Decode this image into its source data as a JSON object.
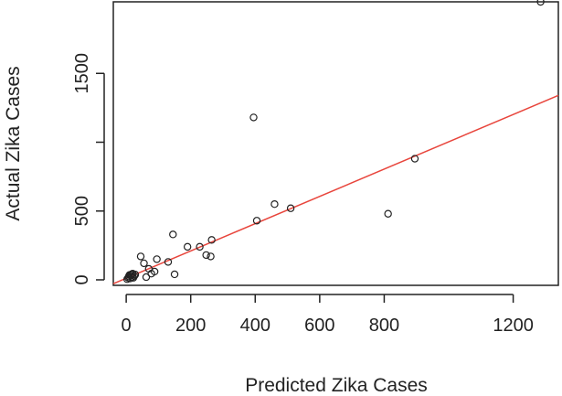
{
  "chart_data": {
    "type": "scatter",
    "title": "",
    "xlabel": "Predicted Zika Cases",
    "ylabel": "Actual Zika Cases",
    "xlim": [
      -40,
      1340
    ],
    "ylim": [
      -40,
      2020
    ],
    "x_ticks": [
      {
        "value": 0,
        "label": "0"
      },
      {
        "value": 200,
        "label": "200"
      },
      {
        "value": 400,
        "label": "400"
      },
      {
        "value": 600,
        "label": "600"
      },
      {
        "value": 800,
        "label": "800"
      },
      {
        "value": 1200,
        "label": "1200"
      }
    ],
    "y_ticks": [
      {
        "value": 0,
        "label": "0"
      },
      {
        "value": 500,
        "label": "500"
      },
      {
        "value": 1000,
        "label": ""
      },
      {
        "value": 1500,
        "label": "1500"
      }
    ],
    "grid": false,
    "series": [
      {
        "marker": "open-circle",
        "points": [
          {
            "x": 3,
            "y": 5
          },
          {
            "x": 6,
            "y": 15
          },
          {
            "x": 8,
            "y": 25
          },
          {
            "x": 10,
            "y": 35
          },
          {
            "x": 12,
            "y": 10
          },
          {
            "x": 14,
            "y": 30
          },
          {
            "x": 16,
            "y": 40
          },
          {
            "x": 18,
            "y": 20
          },
          {
            "x": 20,
            "y": 45
          },
          {
            "x": 22,
            "y": 15
          },
          {
            "x": 25,
            "y": 28
          },
          {
            "x": 28,
            "y": 38
          },
          {
            "x": 45,
            "y": 170
          },
          {
            "x": 55,
            "y": 120
          },
          {
            "x": 62,
            "y": 20
          },
          {
            "x": 70,
            "y": 80
          },
          {
            "x": 78,
            "y": 45
          },
          {
            "x": 88,
            "y": 60
          },
          {
            "x": 95,
            "y": 150
          },
          {
            "x": 130,
            "y": 130
          },
          {
            "x": 145,
            "y": 330
          },
          {
            "x": 150,
            "y": 40
          },
          {
            "x": 190,
            "y": 240
          },
          {
            "x": 228,
            "y": 240
          },
          {
            "x": 248,
            "y": 180
          },
          {
            "x": 262,
            "y": 170
          },
          {
            "x": 265,
            "y": 290
          },
          {
            "x": 395,
            "y": 1180
          },
          {
            "x": 405,
            "y": 430
          },
          {
            "x": 460,
            "y": 550
          },
          {
            "x": 510,
            "y": 520
          },
          {
            "x": 812,
            "y": 480
          },
          {
            "x": 895,
            "y": 880
          },
          {
            "x": 1285,
            "y": 2020
          }
        ]
      },
      {
        "type": "line",
        "color": "#e8453c",
        "start": {
          "x": -40,
          "y": -28
        },
        "end": {
          "x": 1340,
          "y": 1340
        }
      }
    ]
  }
}
